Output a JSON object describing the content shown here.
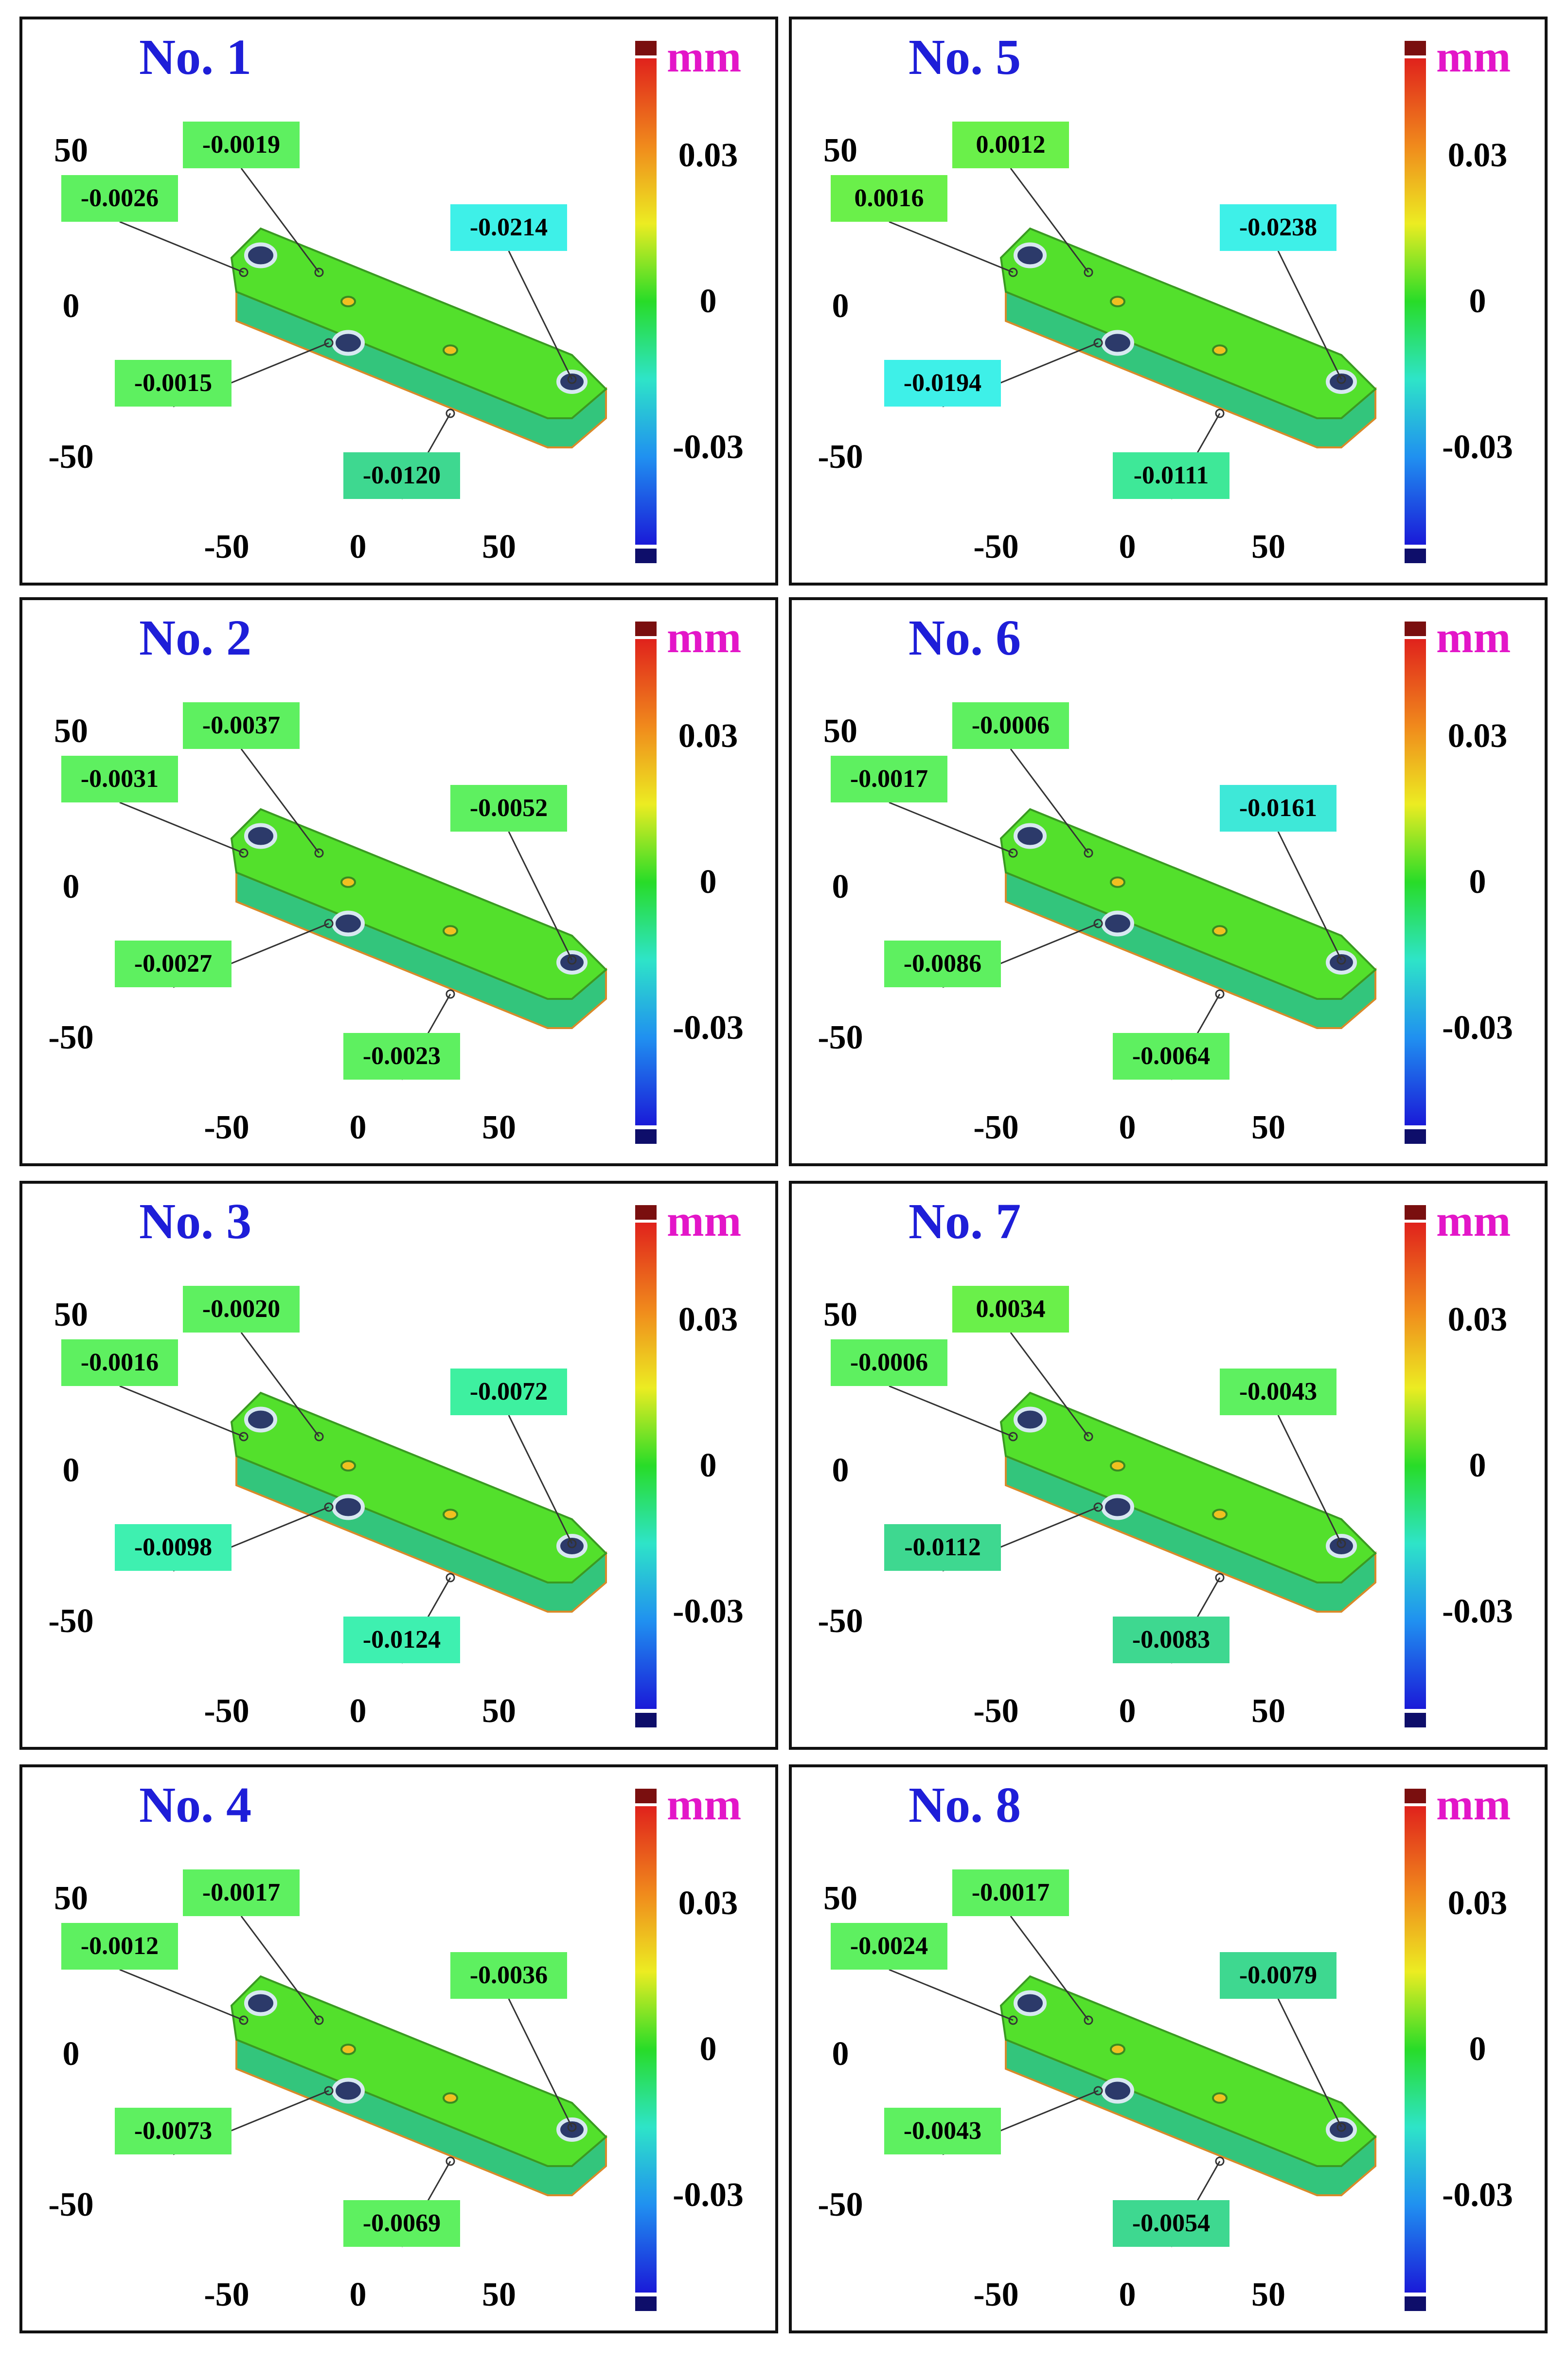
{
  "colors": {
    "part_top": "#53e02c",
    "part_side": "#33c57c",
    "part_edge": "#d98a2a",
    "border": "#111111",
    "title": "#1e1ed8",
    "unit": "#e316c8"
  },
  "colorbar": {
    "unit": "mm",
    "tick_labels": [
      "0.03",
      "0",
      "-0.03"
    ],
    "tick_values": [
      0.03,
      0,
      -0.03
    ],
    "range": [
      -0.05,
      0.05
    ]
  },
  "axis_ticks": {
    "vertical": [
      "50",
      "0",
      "-50"
    ],
    "horizontal": [
      "-50",
      "0",
      "50"
    ]
  },
  "panels": [
    {
      "title": "No. 1",
      "labels": [
        {
          "text": "-0.0019",
          "color": "#5ef060"
        },
        {
          "text": "-0.0026",
          "color": "#5ef060"
        },
        {
          "text": "-0.0214",
          "color": "#3ef0e8"
        },
        {
          "text": "-0.0015",
          "color": "#5ef060"
        },
        {
          "text": "-0.0120",
          "color": "#3ed890"
        }
      ]
    },
    {
      "title": "No. 5",
      "labels": [
        {
          "text": "0.0012",
          "color": "#6af04a"
        },
        {
          "text": "0.0016",
          "color": "#6af04a"
        },
        {
          "text": "-0.0238",
          "color": "#3ef0e8"
        },
        {
          "text": "-0.0194",
          "color": "#3ef0e8"
        },
        {
          "text": "-0.0111",
          "color": "#3ee898"
        }
      ]
    },
    {
      "title": "No. 2",
      "labels": [
        {
          "text": "-0.0037",
          "color": "#5ef060"
        },
        {
          "text": "-0.0031",
          "color": "#5ef060"
        },
        {
          "text": "-0.0052",
          "color": "#5ef060"
        },
        {
          "text": "-0.0027",
          "color": "#5ef060"
        },
        {
          "text": "-0.0023",
          "color": "#5ef060"
        }
      ]
    },
    {
      "title": "No. 6",
      "labels": [
        {
          "text": "-0.0006",
          "color": "#5ef060"
        },
        {
          "text": "-0.0017",
          "color": "#5ef060"
        },
        {
          "text": "-0.0161",
          "color": "#3ee8d8"
        },
        {
          "text": "-0.0086",
          "color": "#5ef060"
        },
        {
          "text": "-0.0064",
          "color": "#5ef060"
        }
      ]
    },
    {
      "title": "No. 3",
      "labels": [
        {
          "text": "-0.0020",
          "color": "#5ef060"
        },
        {
          "text": "-0.0016",
          "color": "#5ef060"
        },
        {
          "text": "-0.0072",
          "color": "#3ef0a0"
        },
        {
          "text": "-0.0098",
          "color": "#3ef0b0"
        },
        {
          "text": "-0.0124",
          "color": "#3ef0b0"
        }
      ]
    },
    {
      "title": "No. 7",
      "labels": [
        {
          "text": "0.0034",
          "color": "#6af04a"
        },
        {
          "text": "-0.0006",
          "color": "#5ef060"
        },
        {
          "text": "-0.0043",
          "color": "#5ef060"
        },
        {
          "text": "-0.0112",
          "color": "#3ed890"
        },
        {
          "text": "-0.0083",
          "color": "#3ed890"
        }
      ]
    },
    {
      "title": "No. 4",
      "labels": [
        {
          "text": "-0.0017",
          "color": "#5ef060"
        },
        {
          "text": "-0.0012",
          "color": "#5ef060"
        },
        {
          "text": "-0.0036",
          "color": "#5ef060"
        },
        {
          "text": "-0.0073",
          "color": "#5ef060"
        },
        {
          "text": "-0.0069",
          "color": "#5ef060"
        }
      ]
    },
    {
      "title": "No. 8",
      "labels": [
        {
          "text": "-0.0017",
          "color": "#5ef060"
        },
        {
          "text": "-0.0024",
          "color": "#5ef060"
        },
        {
          "text": "-0.0079",
          "color": "#3ed890"
        },
        {
          "text": "-0.0043",
          "color": "#5ef060"
        },
        {
          "text": "-0.0054",
          "color": "#3ed890"
        }
      ]
    }
  ]
}
